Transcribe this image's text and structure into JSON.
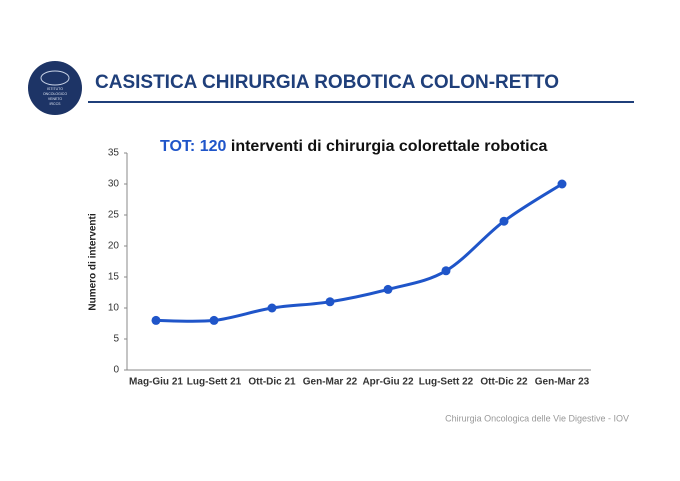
{
  "header": {
    "title": "CASISTICA CHIRURGIA ROBOTICA COLON-RETTO",
    "logo_text": [
      "ISTITUTO",
      "ONCOLOGICO",
      "VENETO",
      "IRCCS"
    ]
  },
  "chart_data": {
    "type": "line",
    "title": {
      "prefix": "TOT:",
      "total": 120,
      "text": "interventi di chirurgia colorettale robotica"
    },
    "y_label": "Numero di interventi",
    "categories": [
      "Mag-Giu 21",
      "Lug-Sett 21",
      "Ott-Dic 21",
      "Gen-Mar 22",
      "Apr-Giu 22",
      "Lug-Sett 22",
      "Ott-Dic 22",
      "Gen-Mar 23"
    ],
    "series": [
      {
        "color": "#1f55c9",
        "values": [
          8,
          8,
          10,
          11,
          13,
          16,
          24,
          30
        ]
      }
    ],
    "ylim": [
      0,
      35
    ],
    "yticks": [
      0,
      5,
      10,
      15,
      20,
      25,
      30,
      35
    ],
    "grid": false,
    "smooth": true
  },
  "footer": "Chirurgia Oncologica delle Vie Digestive - IOV"
}
